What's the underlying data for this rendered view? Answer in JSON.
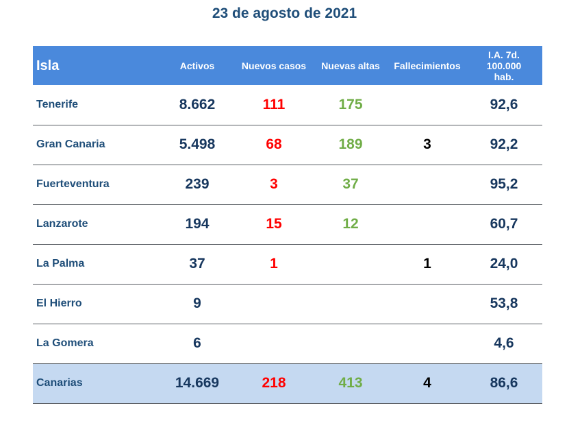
{
  "title": "23 de agosto de 2021",
  "headers": {
    "isla": "Isla",
    "activos": "Activos",
    "nuevos_casos": "Nuevos casos",
    "nuevas_altas": "Nuevas altas",
    "fallecimientos": "Fallecimientos",
    "ia_line1": "I.A. 7d.",
    "ia_line2": "100.000",
    "ia_line3": "hab."
  },
  "rows": [
    {
      "isla": "Tenerife",
      "activos": "8.662",
      "nuevos_casos": "111",
      "nuevas_altas": "175",
      "fallecimientos": "",
      "ia": "92,6"
    },
    {
      "isla": "Gran Canaria",
      "activos": "5.498",
      "nuevos_casos": "68",
      "nuevas_altas": "189",
      "fallecimientos": "3",
      "ia": "92,2"
    },
    {
      "isla": "Fuerteventura",
      "activos": "239",
      "nuevos_casos": "3",
      "nuevas_altas": "37",
      "fallecimientos": "",
      "ia": "95,2"
    },
    {
      "isla": "Lanzarote",
      "activos": "194",
      "nuevos_casos": "15",
      "nuevas_altas": "12",
      "fallecimientos": "",
      "ia": "60,7"
    },
    {
      "isla": "La Palma",
      "activos": "37",
      "nuevos_casos": "1",
      "nuevas_altas": "",
      "fallecimientos": "1",
      "ia": "24,0"
    },
    {
      "isla": "El Hierro",
      "activos": "9",
      "nuevos_casos": "",
      "nuevas_altas": "",
      "fallecimientos": "",
      "ia": "53,8"
    },
    {
      "isla": "La Gomera",
      "activos": "6",
      "nuevos_casos": "",
      "nuevas_altas": "",
      "fallecimientos": "",
      "ia": "4,6"
    }
  ],
  "total": {
    "isla": "Canarias",
    "activos": "14.669",
    "nuevos_casos": "218",
    "nuevas_altas": "413",
    "fallecimientos": "4",
    "ia": "86,6"
  },
  "colors": {
    "header_bg": "#4a89dc",
    "title": "#1f4e79",
    "nuevos_casos": "#ff0000",
    "nuevas_altas": "#70ad47",
    "total_bg": "#c5d9f1"
  }
}
